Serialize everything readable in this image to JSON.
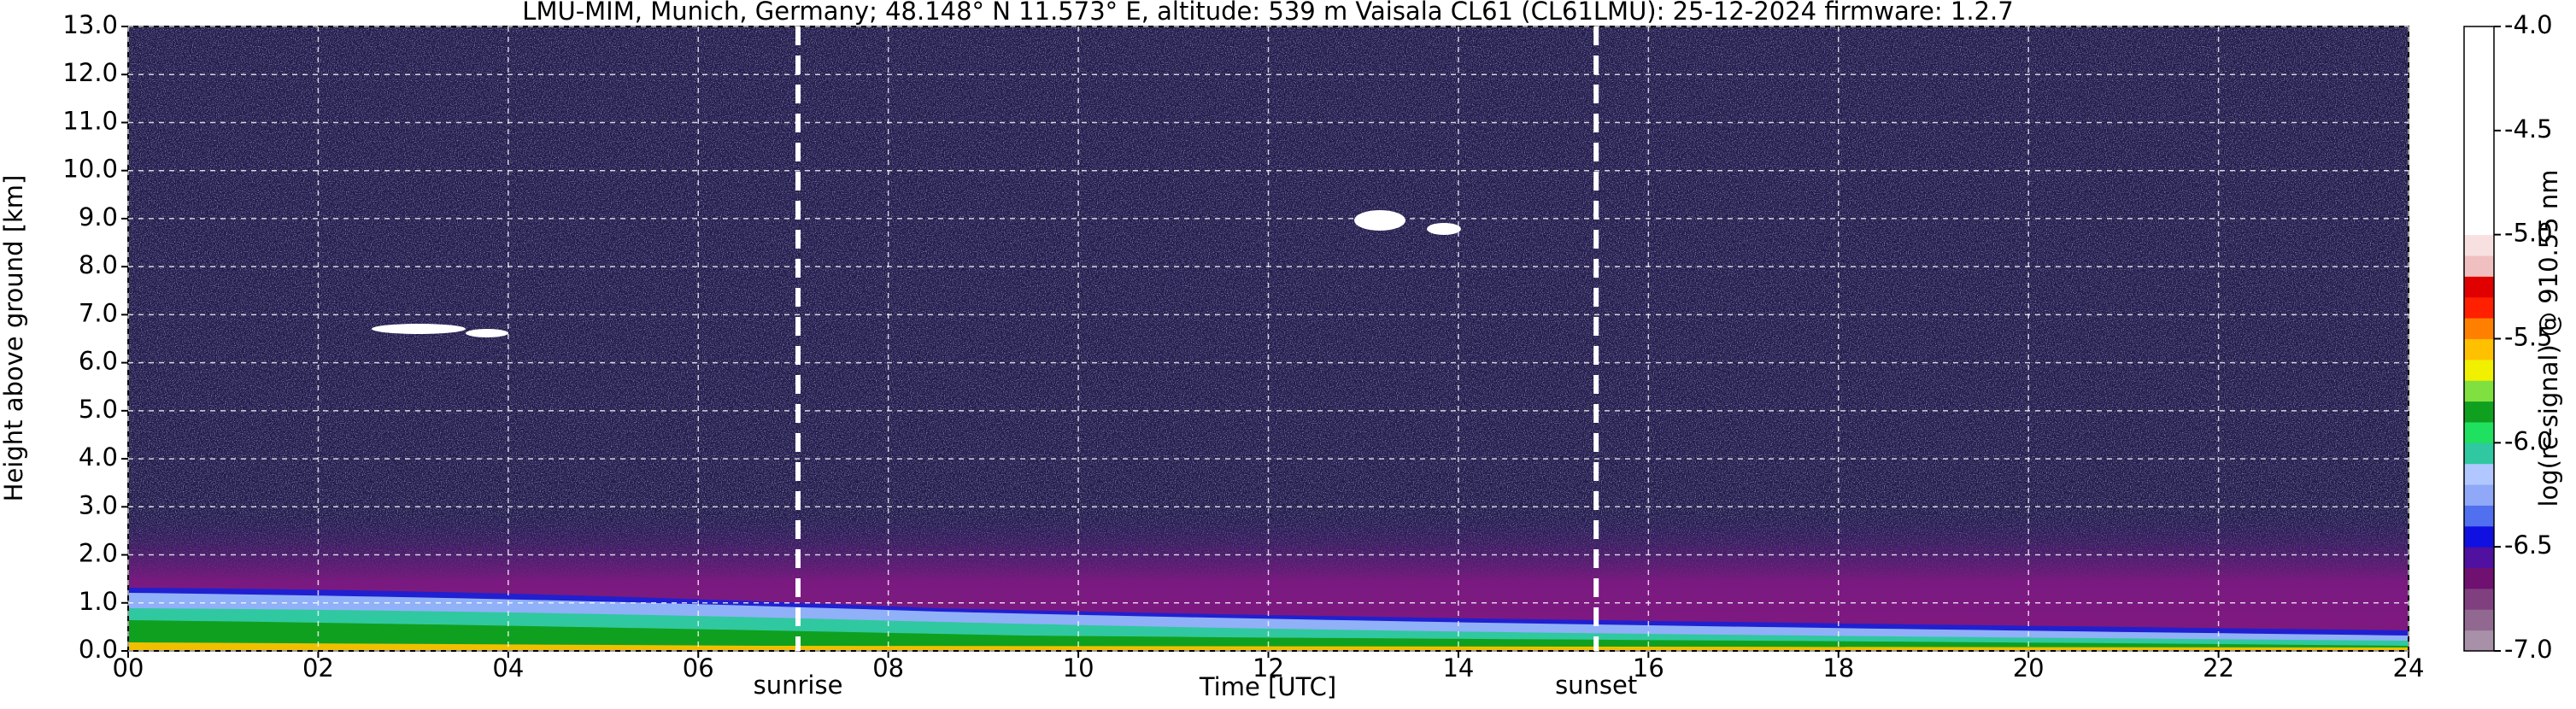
{
  "chart_data": {
    "type": "heatmap",
    "title": "LMU-MIM, Munich, Germany; 48.148° N 11.573° E, altitude: 539 m    Vaisala CL61 (CL61LMU): 25-12-2024    firmware: 1.2.7",
    "xlabel": "Time [UTC]",
    "ylabel": "Height above ground [km]",
    "xlim": [
      0,
      24
    ],
    "xticks": [
      {
        "value": 0,
        "label": "00"
      },
      {
        "value": 2,
        "label": "02"
      },
      {
        "value": 4,
        "label": "04"
      },
      {
        "value": 6,
        "label": "06"
      },
      {
        "value": 8,
        "label": "08"
      },
      {
        "value": 10,
        "label": "10"
      },
      {
        "value": 12,
        "label": "12"
      },
      {
        "value": 14,
        "label": "14"
      },
      {
        "value": 16,
        "label": "16"
      },
      {
        "value": 18,
        "label": "18"
      },
      {
        "value": 20,
        "label": "20"
      },
      {
        "value": 22,
        "label": "22"
      },
      {
        "value": 24,
        "label": "24"
      }
    ],
    "ylim": [
      0,
      13
    ],
    "yticks": [
      {
        "value": 0,
        "label": "0.0"
      },
      {
        "value": 1,
        "label": "1.0"
      },
      {
        "value": 2,
        "label": "2.0"
      },
      {
        "value": 3,
        "label": "3.0"
      },
      {
        "value": 4,
        "label": "4.0"
      },
      {
        "value": 5,
        "label": "5.0"
      },
      {
        "value": 6,
        "label": "6.0"
      },
      {
        "value": 7,
        "label": "7.0"
      },
      {
        "value": 8,
        "label": "8.0"
      },
      {
        "value": 9,
        "label": "9.0"
      },
      {
        "value": 10,
        "label": "10.0"
      },
      {
        "value": 11,
        "label": "11.0"
      },
      {
        "value": 12,
        "label": "12.0"
      },
      {
        "value": 13,
        "label": "13.0"
      }
    ],
    "grid": true,
    "annotations": [
      {
        "text": "sunrise",
        "x": 7.05
      },
      {
        "text": "sunset",
        "x": 15.45
      }
    ],
    "colorbar": {
      "label": "log(rc-signal) @ 910.55 nm",
      "lim": [
        -7,
        -4
      ],
      "ticks": [
        {
          "value": -4,
          "label": "-4.0"
        },
        {
          "value": -4.5,
          "label": "-4.5"
        },
        {
          "value": -5,
          "label": "-5.0"
        },
        {
          "value": -5.5,
          "label": "-5.5"
        },
        {
          "value": -6,
          "label": "-6.0"
        },
        {
          "value": -6.5,
          "label": "-6.5"
        },
        {
          "value": -7,
          "label": "-7.0"
        }
      ],
      "colors": [
        "#a890a8",
        "#906890",
        "#804080",
        "#701070",
        "#5010a0",
        "#1010e0",
        "#5070f0",
        "#90a8f8",
        "#b0c8ff",
        "#30c8a0",
        "#20e060",
        "#10a020",
        "#80e040",
        "#f0f000",
        "#ffc000",
        "#ff8000",
        "#ff2000",
        "#e00000",
        "#f0c0c0",
        "#f8e0e0",
        "#ffffff",
        "#ffffff",
        "#ffffff",
        "#ffffff",
        "#ffffff",
        "#ffffff",
        "#ffffff",
        "#ffffff",
        "#ffffff",
        "#ffffff"
      ]
    }
  }
}
